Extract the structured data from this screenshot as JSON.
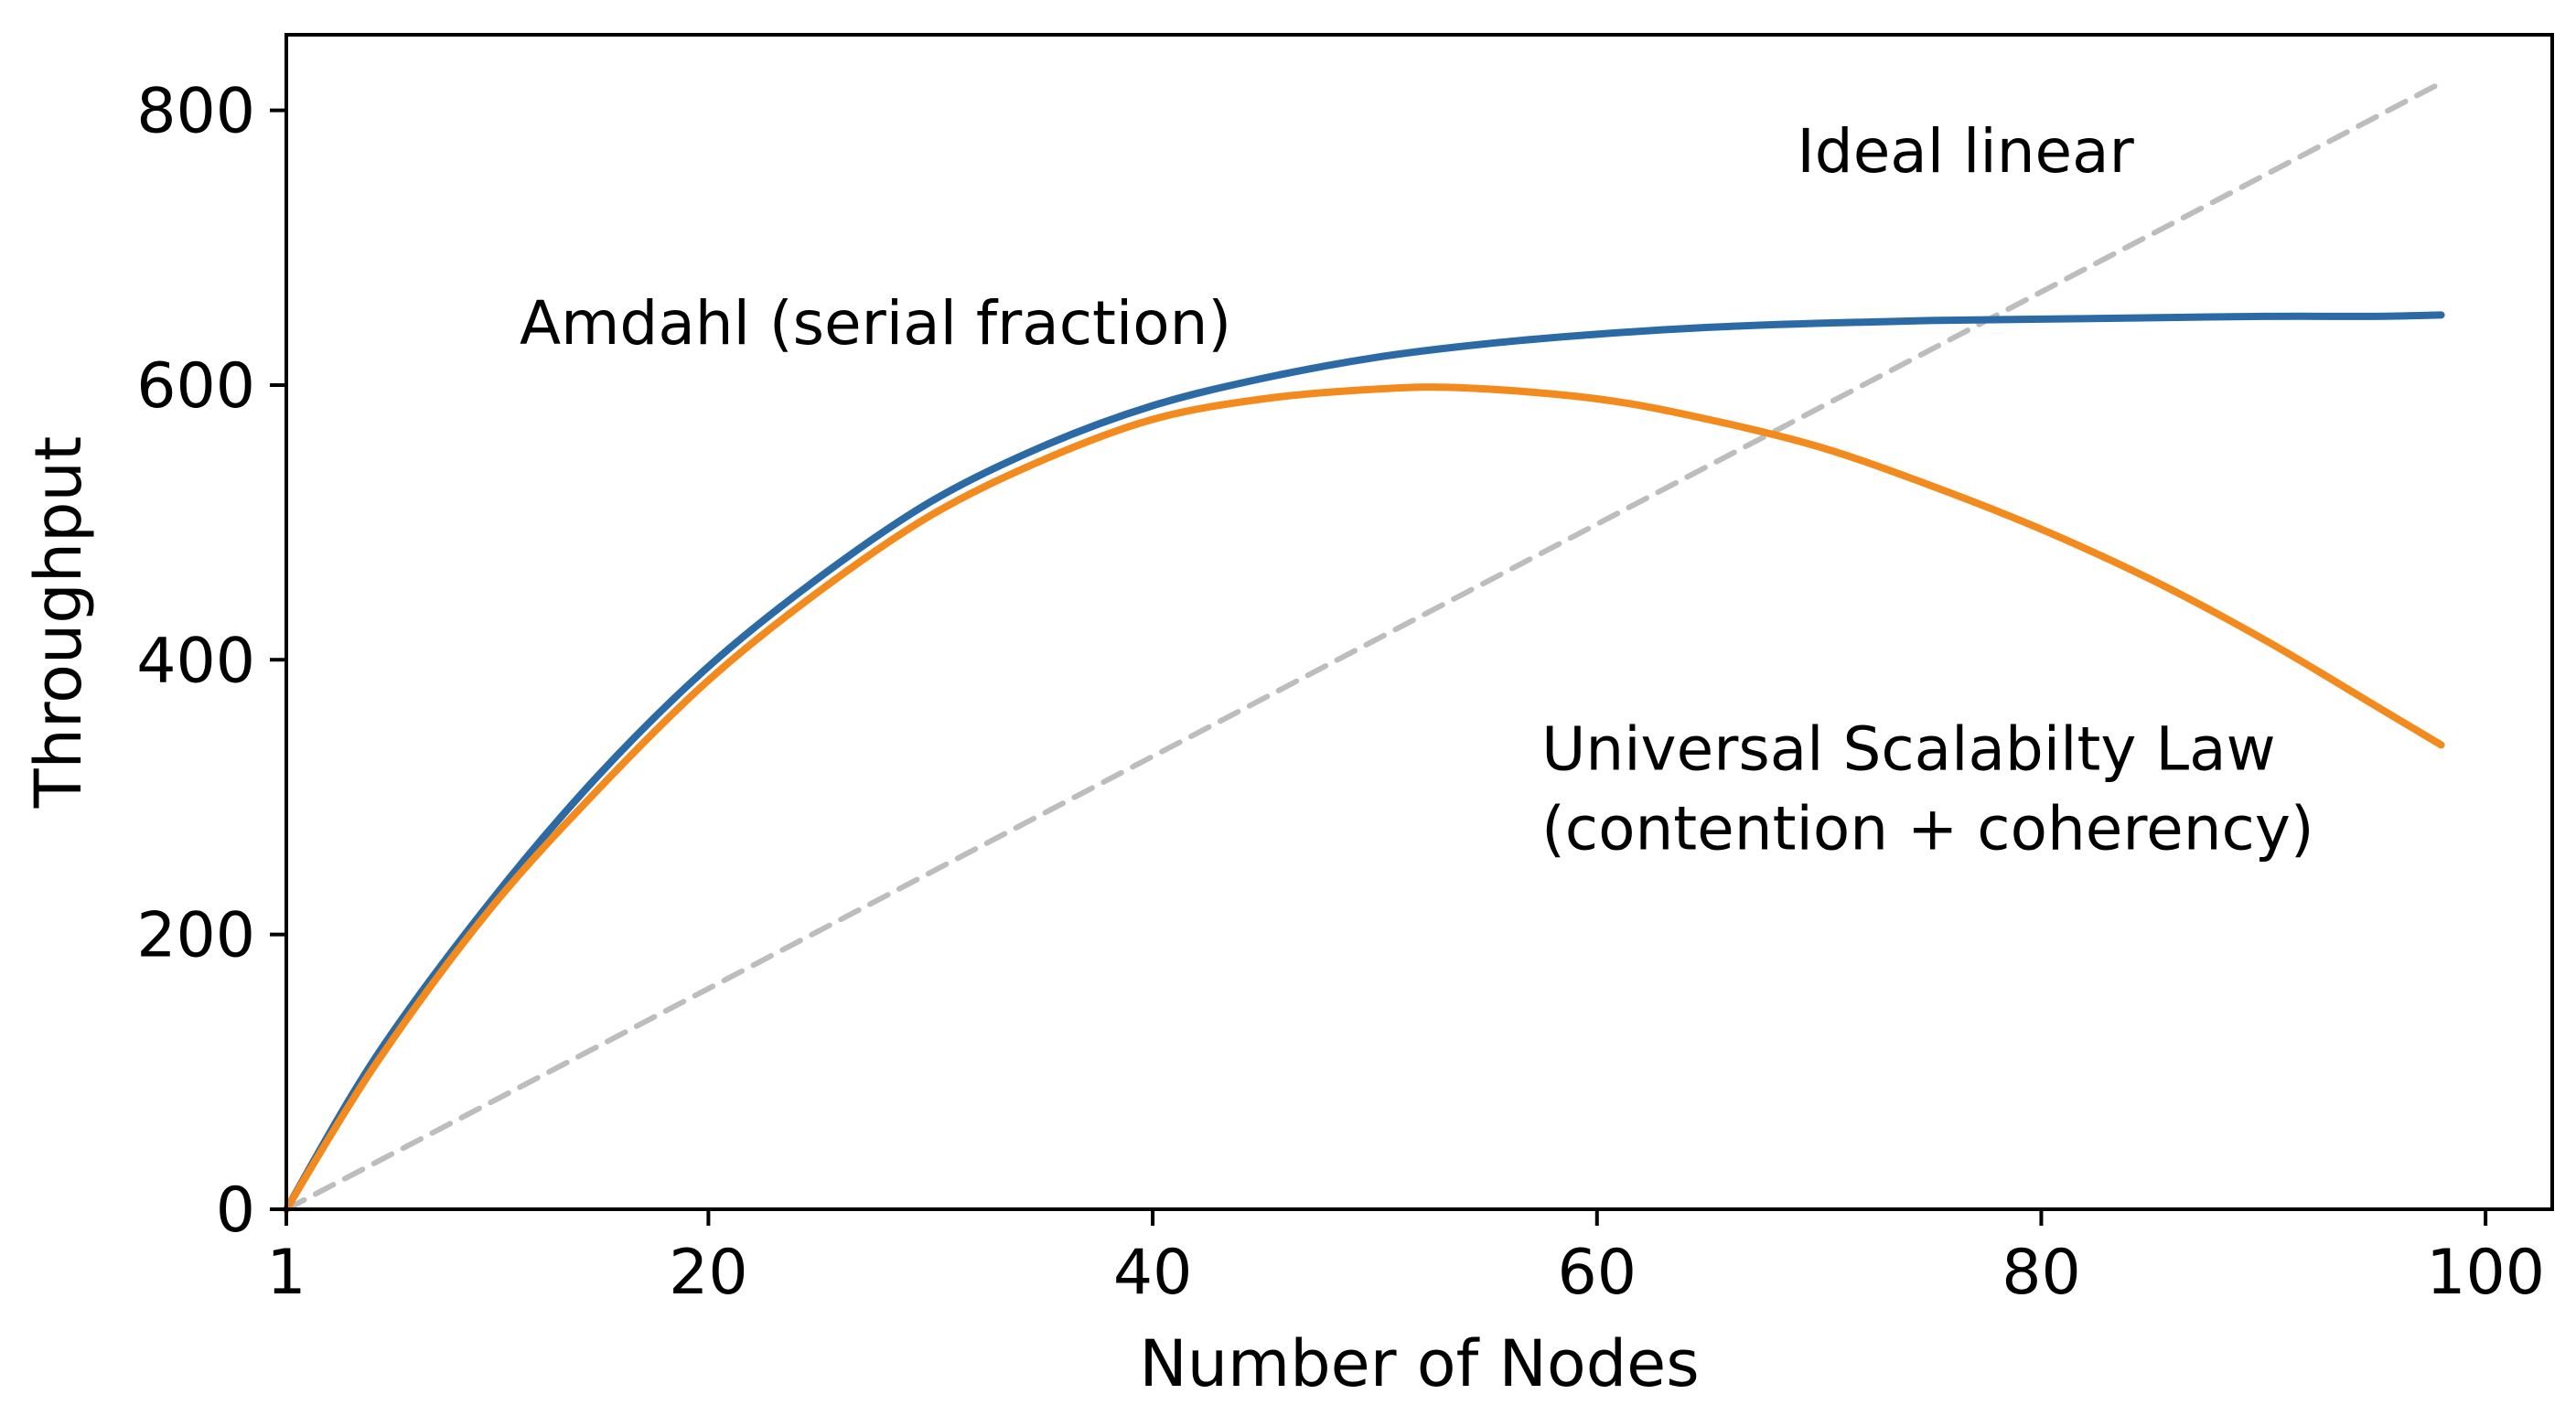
{
  "chart_data": {
    "type": "line",
    "title": "",
    "xlabel": "Number of Nodes",
    "ylabel": "Throughput",
    "xlim": [
      1,
      103
    ],
    "ylim": [
      0,
      855
    ],
    "x_ticks": [
      1,
      20,
      40,
      60,
      80,
      100
    ],
    "y_ticks": [
      0,
      200,
      400,
      600,
      800
    ],
    "grid": false,
    "legend": "none",
    "series": [
      {
        "color": "#bdbdbd",
        "style": "dashed",
        "x": [
          1,
          98
        ],
        "y": [
          0,
          820
        ]
      },
      {
        "color": "#2c6aa6",
        "style": "solid",
        "x": [
          1,
          5,
          10,
          15,
          20,
          25,
          30,
          35,
          40,
          45,
          50,
          55,
          60,
          65,
          70,
          75,
          80,
          85,
          90,
          95,
          98
        ],
        "y": [
          0,
          110,
          220,
          315,
          395,
          460,
          515,
          555,
          585,
          605,
          620,
          630,
          637,
          642,
          645,
          647,
          648,
          649,
          650,
          650,
          651
        ]
      },
      {
        "color": "#f28a1e",
        "style": "solid",
        "x": [
          1,
          5,
          10,
          15,
          20,
          25,
          30,
          35,
          40,
          45,
          50,
          54,
          60,
          65,
          70,
          75,
          80,
          85,
          90,
          95,
          98
        ],
        "y": [
          0,
          105,
          215,
          305,
          385,
          450,
          505,
          545,
          575,
          590,
          597,
          598,
          590,
          575,
          555,
          527,
          495,
          458,
          415,
          367,
          338
        ]
      }
    ],
    "annotations": [
      {
        "text": "Ideal linear",
        "x": 69,
        "y": 755
      },
      {
        "text": "Amdahl (serial fraction)",
        "x": 11.5,
        "y": 630
      },
      {
        "text": "Universal Scalabilty Law",
        "x": 57.5,
        "y": 320
      },
      {
        "text": "(contention + coherency)",
        "x": 57.5,
        "y": 262
      }
    ]
  }
}
